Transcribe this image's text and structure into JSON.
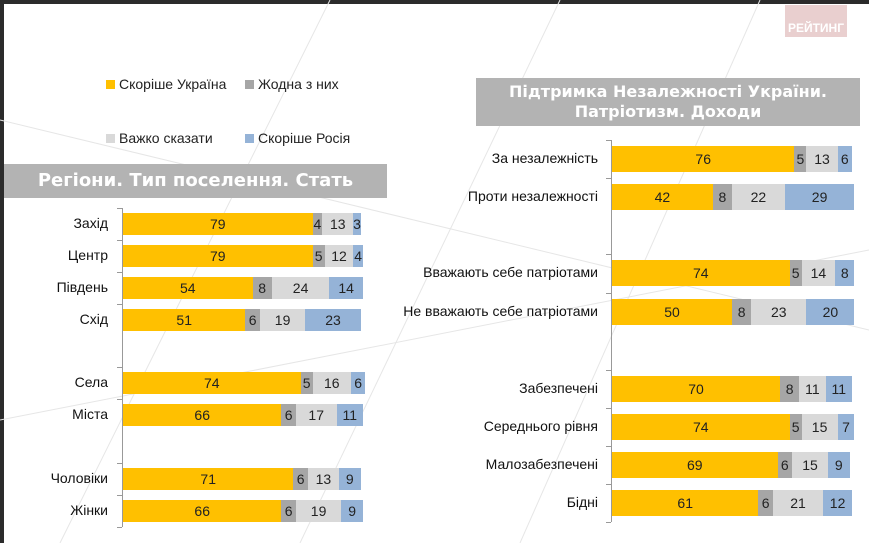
{
  "logo": "РЕЙТИНГ",
  "colors": {
    "ukraine": "#FFC000",
    "none": "#A6A6A6",
    "hard": "#D9D9D9",
    "russia": "#95B3D7"
  },
  "legend": [
    {
      "label": "Скоріше Україна",
      "color": "#FFC000"
    },
    {
      "label": "Жодна з них",
      "color": "#A6A6A6"
    },
    {
      "label": "Важко сказати",
      "color": "#D9D9D9"
    },
    {
      "label": "Скоріше Росія",
      "color": "#95B3D7"
    }
  ],
  "chart_data": [
    {
      "type": "bar",
      "orientation": "horizontal",
      "stacked": true,
      "title": "Регіони. Тип поселення. Стать",
      "categories": [
        "Захід",
        "Центр",
        "Південь",
        "Схід",
        "Села",
        "Міста",
        "Чоловіки",
        "Жінки"
      ],
      "series": [
        {
          "name": "Скоріше Україна",
          "color": "#FFC000",
          "values": [
            79,
            79,
            54,
            51,
            74,
            66,
            71,
            66
          ]
        },
        {
          "name": "Жодна з них",
          "color": "#A6A6A6",
          "values": [
            4,
            5,
            8,
            6,
            5,
            6,
            6,
            6
          ]
        },
        {
          "name": "Важко сказати",
          "color": "#D9D9D9",
          "values": [
            13,
            12,
            24,
            19,
            16,
            17,
            13,
            19
          ]
        },
        {
          "name": "Скоріше Росія",
          "color": "#95B3D7",
          "values": [
            3,
            4,
            14,
            23,
            6,
            11,
            9,
            9
          ]
        }
      ]
    },
    {
      "type": "bar",
      "orientation": "horizontal",
      "stacked": true,
      "title": "Підтримка Незалежності України. Патріотизм. Доходи",
      "categories": [
        "За незалежність",
        "Проти незалежності",
        "Вважають себе патріотами",
        "Не вважають себе патріотами",
        "Забезпечені",
        "Середнього рівня",
        "Малозабезпечені",
        "Бідні"
      ],
      "series": [
        {
          "name": "Скоріше Україна",
          "color": "#FFC000",
          "values": [
            76,
            42,
            74,
            50,
            70,
            74,
            69,
            61
          ]
        },
        {
          "name": "Жодна з них",
          "color": "#A6A6A6",
          "values": [
            5,
            8,
            5,
            8,
            8,
            5,
            6,
            6
          ]
        },
        {
          "name": "Важко сказати",
          "color": "#D9D9D9",
          "values": [
            13,
            22,
            14,
            23,
            11,
            15,
            15,
            21
          ]
        },
        {
          "name": "Скоріше Росія",
          "color": "#95B3D7",
          "values": [
            6,
            29,
            8,
            20,
            11,
            7,
            9,
            12
          ]
        }
      ]
    }
  ]
}
